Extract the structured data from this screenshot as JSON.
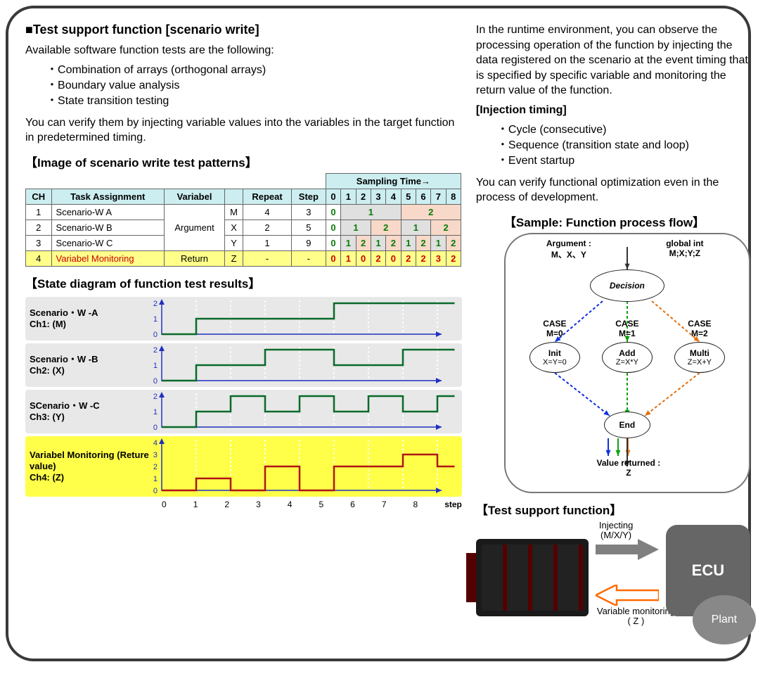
{
  "header": {
    "title": "■Test support function [scenario write]",
    "intro": "Available software function tests are the following:",
    "bullets": [
      "Combination of arrays (orthogonal arrays)",
      "Boundary value analysis",
      "State transition testing"
    ],
    "foot": "You can verify them by injecting variable values into the variables in the target function in predetermined timing."
  },
  "right_text": {
    "para": "In the runtime environment, you can observe the processing operation of the function by injecting the data registered on the scenario at the event timing that is specified by specific variable and monitoring the return value of the function.",
    "sub": "[Injection timing]",
    "bullets": [
      "Cycle (consecutive)",
      "Sequence (transition state and loop)",
      "Event startup"
    ],
    "foot": "You can verify functional optimization even in the process of development."
  },
  "patterns": {
    "title": "【Image of scenario write test patterns】",
    "sampling_header": "Sampling Time→",
    "columns": [
      "CH",
      "Task Assignment",
      "Variabel",
      "",
      "Repeat",
      "Step",
      "0",
      "1",
      "2",
      "3",
      "4",
      "5",
      "6",
      "7",
      "8"
    ],
    "rows": [
      {
        "ch": "1",
        "task": "Scenario-W  A",
        "argspan": "Argument",
        "var": "M",
        "rep": "4",
        "step": "3",
        "cells": [
          {
            "v": "0",
            "c": "g"
          },
          {
            "v": "1",
            "c": "g",
            "span": 4,
            "bg": 1
          },
          {
            "v": "2",
            "c": "g",
            "span": 4,
            "bg": 2
          }
        ]
      },
      {
        "ch": "2",
        "task": "Scenario-W  B",
        "var": "X",
        "rep": "2",
        "step": "5",
        "cells": [
          {
            "v": "0",
            "c": "g"
          },
          {
            "v": "1",
            "c": "g",
            "span": 2,
            "bg": 1
          },
          {
            "v": "2",
            "c": "g",
            "span": 2,
            "bg": 2
          },
          {
            "v": "1",
            "c": "g",
            "span": 2,
            "bg": 1
          },
          {
            "v": "2",
            "c": "g",
            "span": 2,
            "bg": 2
          }
        ]
      },
      {
        "ch": "3",
        "task": "Scenario-W  C",
        "var": "Y",
        "rep": "1",
        "step": "9",
        "cells": [
          {
            "v": "0",
            "c": "g"
          },
          {
            "v": "1",
            "c": "g",
            "bg": 1
          },
          {
            "v": "2",
            "c": "g",
            "bg": 2
          },
          {
            "v": "1",
            "c": "g",
            "bg": 1
          },
          {
            "v": "2",
            "c": "g",
            "bg": 2
          },
          {
            "v": "1",
            "c": "g",
            "bg": 1
          },
          {
            "v": "2",
            "c": "g",
            "bg": 2
          },
          {
            "v": "1",
            "c": "g",
            "bg": 1
          },
          {
            "v": "2",
            "c": "g",
            "bg": 2
          }
        ]
      },
      {
        "ch": "4",
        "task": "Variabel Monitoring",
        "ret": "Return",
        "var": "Z",
        "rep": "-",
        "step": "-",
        "hl": true,
        "cells": [
          {
            "v": "0",
            "c": "r"
          },
          {
            "v": "1",
            "c": "r"
          },
          {
            "v": "0",
            "c": "r"
          },
          {
            "v": "2",
            "c": "r"
          },
          {
            "v": "0",
            "c": "r"
          },
          {
            "v": "2",
            "c": "r"
          },
          {
            "v": "2",
            "c": "r"
          },
          {
            "v": "3",
            "c": "r"
          },
          {
            "v": "2",
            "c": "r"
          }
        ]
      }
    ]
  },
  "diagrams": {
    "title": "【State diagram of function test results】",
    "step_label": "step",
    "x_ticks": [
      "0",
      "1",
      "2",
      "3",
      "4",
      "5",
      "6",
      "7",
      "8"
    ],
    "series": [
      {
        "label1": "Scenario・W  -A",
        "label2": "Ch1: (M)",
        "color": "#0a6a2a",
        "ymax": 2,
        "data": [
          0,
          1,
          1,
          1,
          1,
          2,
          2,
          2,
          2
        ]
      },
      {
        "label1": "Scenario・W  -B",
        "label2": "Ch2: (X)",
        "color": "#0a6a2a",
        "ymax": 2,
        "data": [
          0,
          1,
          1,
          2,
          2,
          1,
          1,
          2,
          2
        ]
      },
      {
        "label1": "SCenario・W  -C",
        "label2": "Ch3: (Y)",
        "color": "#0a6a2a",
        "ymax": 2,
        "data": [
          0,
          1,
          2,
          1,
          2,
          1,
          2,
          1,
          2
        ]
      },
      {
        "label1": "Variabel Monitoring (Reture value)",
        "label2": "Ch4: (Z)",
        "color": "#b01515",
        "ymax": 4,
        "hl": true,
        "data": [
          0,
          1,
          0,
          2,
          0,
          2,
          2,
          3,
          2
        ]
      }
    ],
    "grid_color": "#ffffff",
    "axis_color": "#2030c0"
  },
  "flow": {
    "title": "【Sample: Function process flow】",
    "arg_label": "Argument :",
    "arg_vals": "M、X、Y",
    "glob_label": "global  int",
    "glob_vals": "M;X;Y;Z",
    "decision": "Decision",
    "cases": [
      {
        "name": "CASE",
        "cond": "M=0",
        "box": "Init",
        "expr": "X=Y=0",
        "color": "#1030e0"
      },
      {
        "name": "CASE",
        "cond": "M=1",
        "box": "Add",
        "expr": "Z=X*Y",
        "color": "#10a010"
      },
      {
        "name": "CASE",
        "cond": "M=2",
        "box": "Multi",
        "expr": "Z=X+Y",
        "color": "#e07010"
      }
    ],
    "end": "End",
    "ret_label": "Value returned :",
    "ret_var": "Z"
  },
  "device": {
    "title": "【Test support function】",
    "inject_lbl": "Injecting",
    "inject_var": "(M/X/Y)",
    "mon_lbl": "Variable monitoring",
    "mon_var": "( Z )",
    "ecu": "ECU",
    "plant": "Plant",
    "arrow_in_color": "#808080",
    "arrow_out_color": "#ff6a00"
  }
}
